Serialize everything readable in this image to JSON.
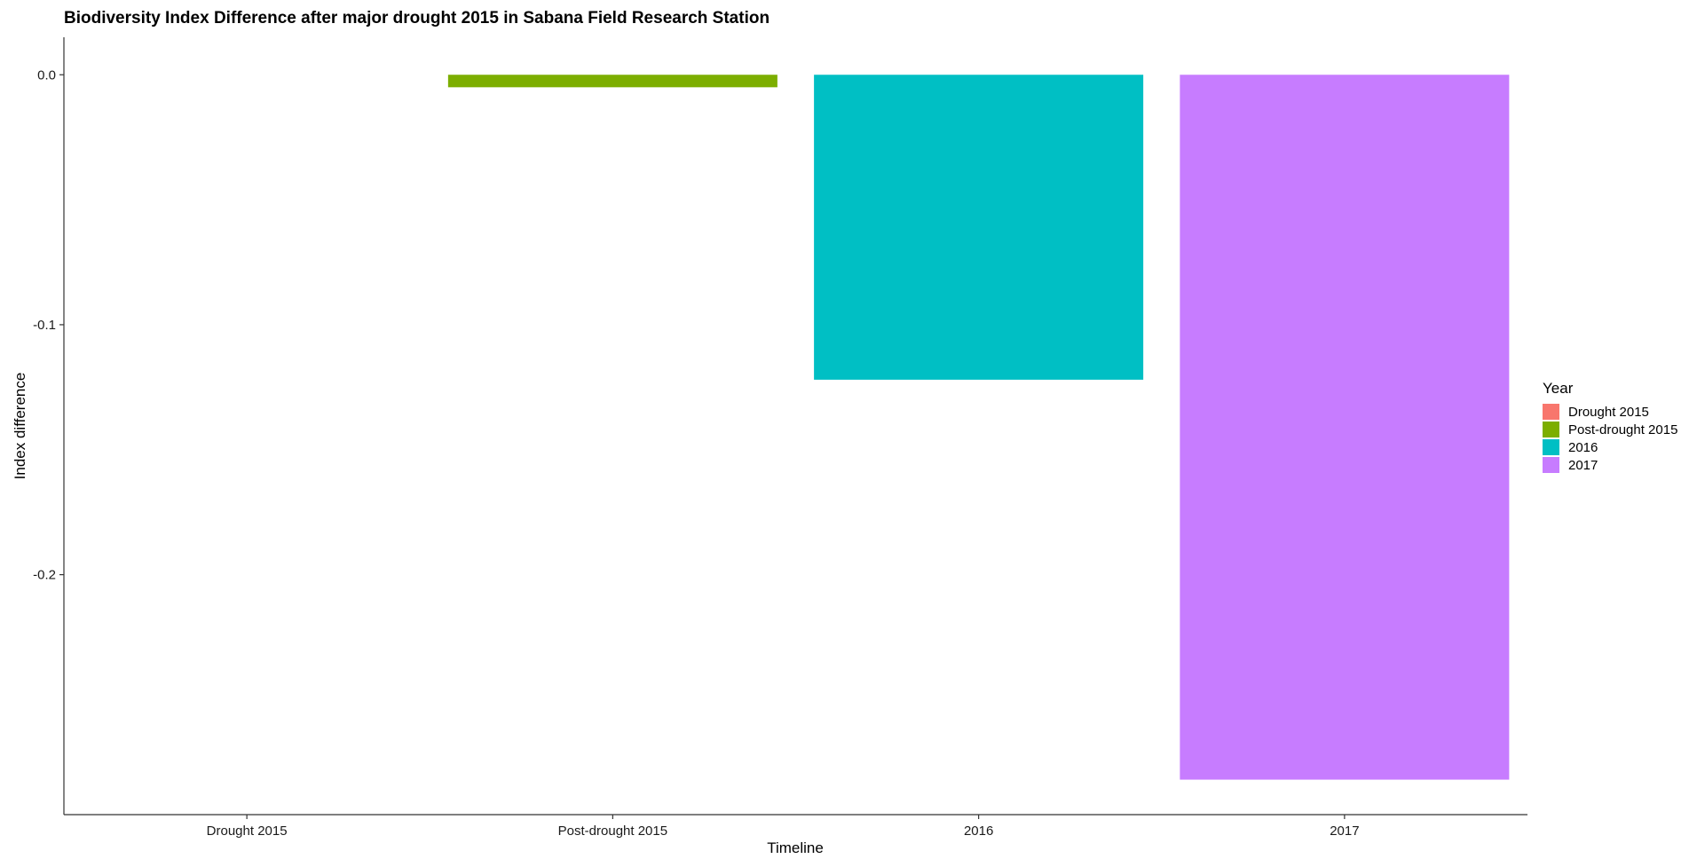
{
  "chart_data": {
    "type": "bar",
    "title": "Biodiversity Index Difference after major drought 2015 in Sabana Field Research Station",
    "xlabel": "Timeline",
    "ylabel": "Index difference",
    "categories": [
      "Drought 2015",
      "Post-drought 2015",
      "2016",
      "2017"
    ],
    "values": [
      0,
      -0.005,
      -0.122,
      -0.282
    ],
    "colors": [
      "#F8766D",
      "#7CAE00",
      "#00BFC4",
      "#C77CFF"
    ],
    "ylim": [
      -0.296,
      0.015
    ],
    "yticks": [
      0.0,
      -0.1,
      -0.2
    ],
    "ytick_labels": [
      "0.0",
      "-0.1",
      "-0.2"
    ],
    "grid": false,
    "legend": {
      "title": "Year",
      "position": "right",
      "entries": [
        "Drought 2015",
        "Post-drought 2015",
        "2016",
        "2017"
      ]
    }
  }
}
